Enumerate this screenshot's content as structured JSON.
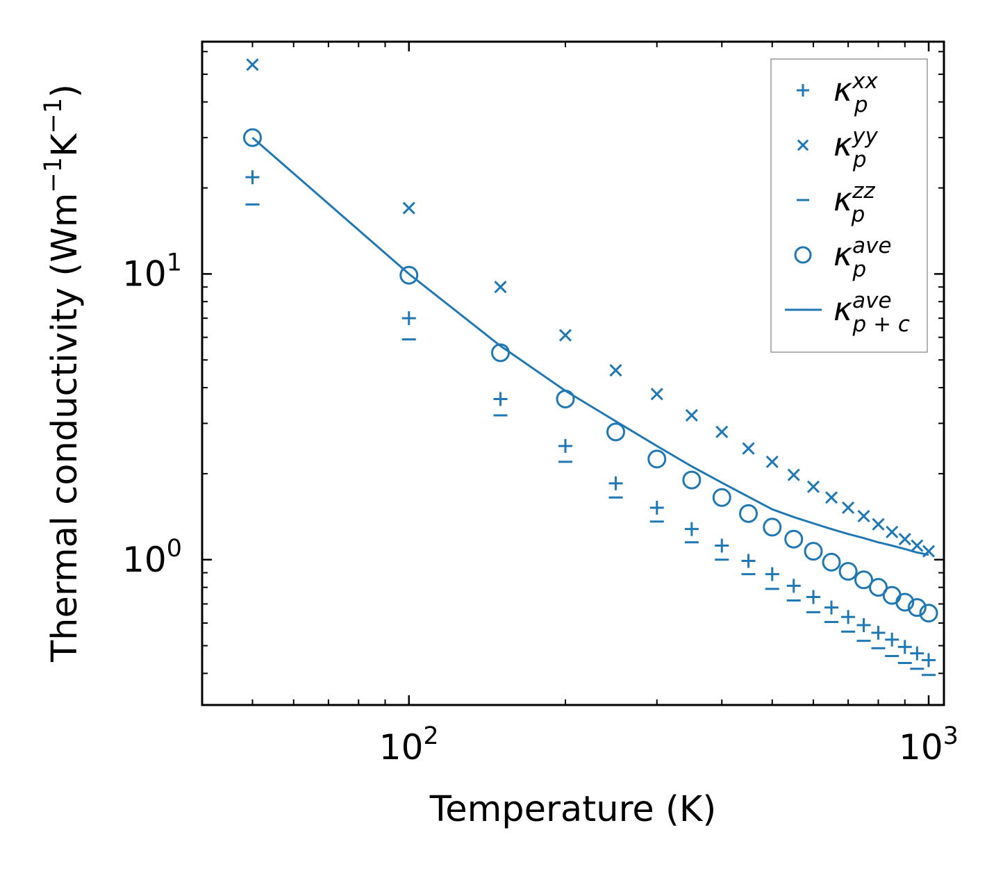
{
  "chart_data": {
    "type": "scatter",
    "xscale": "log",
    "yscale": "log",
    "xlim": [
      40,
      1070
    ],
    "ylim": [
      0.31,
      65
    ],
    "xlabel": "Temperature (K)",
    "ylabel": {
      "prefix": "Thermal conductivity (Wm",
      "exp1": "−1",
      "mid": "K",
      "exp2": "−1",
      "suffix": ")"
    },
    "xticks": [
      {
        "value": 100,
        "base": "10",
        "exp": "2"
      },
      {
        "value": 1000,
        "base": "10",
        "exp": "3"
      }
    ],
    "yticks": [
      {
        "value": 1,
        "base": "10",
        "exp": "0"
      },
      {
        "value": 10,
        "base": "10",
        "exp": "1"
      }
    ],
    "color": "#1f77b4",
    "x": [
      50,
      100,
      150,
      200,
      250,
      300,
      350,
      400,
      450,
      500,
      550,
      600,
      650,
      700,
      750,
      800,
      850,
      900,
      950,
      1000
    ],
    "series": [
      {
        "name": "kp_xx",
        "marker": "plus",
        "kappa": "κ",
        "sub": "p",
        "sup": "xx",
        "values": [
          21.8,
          7.0,
          3.65,
          2.5,
          1.85,
          1.52,
          1.28,
          1.12,
          0.99,
          0.89,
          0.81,
          0.74,
          0.68,
          0.63,
          0.59,
          0.555,
          0.525,
          0.495,
          0.47,
          0.445
        ]
      },
      {
        "name": "kp_yy",
        "marker": "x",
        "kappa": "κ",
        "sub": "p",
        "sup": "yy",
        "values": [
          54,
          17.0,
          9.0,
          6.1,
          4.6,
          3.8,
          3.2,
          2.8,
          2.45,
          2.2,
          1.98,
          1.8,
          1.65,
          1.52,
          1.42,
          1.33,
          1.25,
          1.18,
          1.12,
          1.07
        ]
      },
      {
        "name": "kp_zz",
        "marker": "hline",
        "kappa": "κ",
        "sub": "p",
        "sup": "zz",
        "values": [
          17.5,
          5.9,
          3.2,
          2.2,
          1.65,
          1.36,
          1.15,
          1.0,
          0.89,
          0.79,
          0.72,
          0.655,
          0.605,
          0.56,
          0.52,
          0.49,
          0.46,
          0.435,
          0.415,
          0.395
        ]
      },
      {
        "name": "kp_ave",
        "marker": "circle",
        "kappa": "κ",
        "sub": "p",
        "sup": "ave",
        "values": [
          30,
          9.9,
          5.3,
          3.65,
          2.8,
          2.25,
          1.9,
          1.65,
          1.45,
          1.3,
          1.18,
          1.07,
          0.98,
          0.91,
          0.85,
          0.8,
          0.75,
          0.71,
          0.68,
          0.65
        ]
      },
      {
        "name": "kpc_ave",
        "marker": "line",
        "kappa": "κ",
        "sub": "p + c",
        "sup": "ave",
        "values": [
          30,
          10.0,
          5.6,
          3.9,
          3.05,
          2.5,
          2.12,
          1.86,
          1.66,
          1.5,
          1.41,
          1.34,
          1.28,
          1.23,
          1.19,
          1.15,
          1.12,
          1.09,
          1.06,
          1.04
        ]
      }
    ],
    "legend_position": "top-right",
    "grid": false
  }
}
